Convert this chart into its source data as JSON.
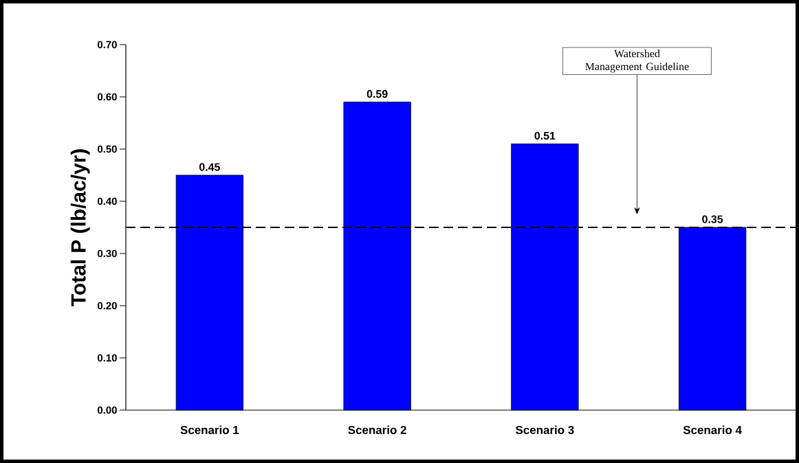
{
  "chart_data": {
    "type": "bar",
    "ylabel": "Total P (lb/ac/yr)",
    "categories": [
      "Scenario 1",
      "Scenario 2",
      "Scenario 3",
      "Scenario 4"
    ],
    "values": [
      0.45,
      0.59,
      0.51,
      0.35
    ],
    "color": "#0000ff",
    "data_labels": true,
    "ylim": [
      0,
      0.7
    ],
    "yticks": [
      {
        "value": 0,
        "label": "0.00"
      },
      {
        "value": 0.1,
        "label": "0.10"
      },
      {
        "value": 0.2,
        "label": "0.20"
      },
      {
        "value": 0.3,
        "label": "0.30"
      },
      {
        "value": 0.4,
        "label": "0.40"
      },
      {
        "value": 0.5,
        "label": "0.50"
      },
      {
        "value": 0.6,
        "label": "0.60"
      },
      {
        "value": 0.7,
        "label": "0.70"
      }
    ],
    "ref_lines": [
      {
        "axis": "y",
        "value": 0.35,
        "label": "Watershed Management Guideline",
        "color": "#000000",
        "line_style": "dashed"
      }
    ]
  }
}
